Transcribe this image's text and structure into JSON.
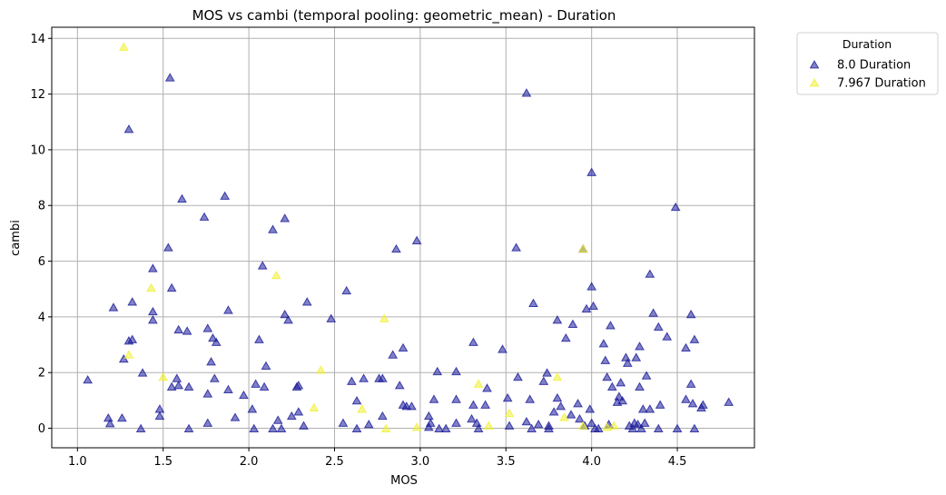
{
  "chart_data": {
    "type": "scatter",
    "title": "MOS vs cambi (temporal pooling: geometric_mean) - Duration",
    "xlabel": "MOS",
    "ylabel": "cambi",
    "xlim": [
      0.85,
      4.95
    ],
    "ylim": [
      -0.7,
      14.4
    ],
    "x_ticks": [
      "1.0",
      "1.5",
      "2.0",
      "2.5",
      "3.0",
      "3.5",
      "4.0",
      "4.5"
    ],
    "y_ticks": [
      "0",
      "2",
      "4",
      "6",
      "8",
      "10",
      "12",
      "14"
    ],
    "grid": true,
    "legend": {
      "title": "Duration",
      "placement": "outside-top-right"
    },
    "marker": "triangle",
    "series": [
      {
        "name": "8.0 Duration",
        "color": "#191a99",
        "points": [
          [
            1.06,
            1.75
          ],
          [
            1.18,
            0.38
          ],
          [
            1.19,
            0.18
          ],
          [
            1.21,
            4.35
          ],
          [
            1.26,
            0.38
          ],
          [
            1.27,
            2.5
          ],
          [
            1.3,
            10.75
          ],
          [
            1.3,
            3.15
          ],
          [
            1.32,
            3.2
          ],
          [
            1.32,
            4.55
          ],
          [
            1.37,
            0.0
          ],
          [
            1.38,
            2.0
          ],
          [
            1.44,
            5.75
          ],
          [
            1.44,
            4.2
          ],
          [
            1.44,
            3.9
          ],
          [
            1.48,
            0.7
          ],
          [
            1.48,
            0.45
          ],
          [
            1.53,
            6.5
          ],
          [
            1.54,
            12.6
          ],
          [
            1.55,
            5.05
          ],
          [
            1.55,
            1.5
          ],
          [
            1.58,
            1.8
          ],
          [
            1.59,
            3.55
          ],
          [
            1.59,
            1.55
          ],
          [
            1.61,
            8.25
          ],
          [
            1.64,
            3.5
          ],
          [
            1.65,
            1.5
          ],
          [
            1.65,
            0.0
          ],
          [
            1.74,
            7.6
          ],
          [
            1.76,
            3.6
          ],
          [
            1.76,
            1.25
          ],
          [
            1.76,
            0.2
          ],
          [
            1.78,
            2.4
          ],
          [
            1.79,
            3.25
          ],
          [
            1.8,
            1.8
          ],
          [
            1.81,
            3.1
          ],
          [
            1.86,
            8.35
          ],
          [
            1.88,
            4.25
          ],
          [
            1.88,
            1.4
          ],
          [
            1.92,
            0.4
          ],
          [
            1.97,
            1.2
          ],
          [
            2.02,
            0.7
          ],
          [
            2.03,
            0.0
          ],
          [
            2.04,
            1.6
          ],
          [
            2.06,
            3.2
          ],
          [
            2.08,
            5.85
          ],
          [
            2.09,
            1.5
          ],
          [
            2.1,
            2.25
          ],
          [
            2.14,
            7.15
          ],
          [
            2.14,
            0.0
          ],
          [
            2.17,
            0.3
          ],
          [
            2.19,
            0.0
          ],
          [
            2.21,
            7.55
          ],
          [
            2.21,
            4.1
          ],
          [
            2.23,
            3.9
          ],
          [
            2.25,
            0.45
          ],
          [
            2.28,
            1.5
          ],
          [
            2.29,
            1.55
          ],
          [
            2.29,
            0.6
          ],
          [
            2.32,
            0.1
          ],
          [
            2.34,
            4.55
          ],
          [
            2.48,
            3.95
          ],
          [
            2.55,
            0.2
          ],
          [
            2.57,
            4.95
          ],
          [
            2.6,
            1.7
          ],
          [
            2.63,
            1.0
          ],
          [
            2.63,
            0.0
          ],
          [
            2.67,
            1.8
          ],
          [
            2.7,
            0.15
          ],
          [
            2.76,
            1.8
          ],
          [
            2.78,
            1.8
          ],
          [
            2.78,
            0.45
          ],
          [
            2.84,
            2.65
          ],
          [
            2.86,
            6.45
          ],
          [
            2.88,
            1.55
          ],
          [
            2.9,
            2.9
          ],
          [
            2.9,
            0.85
          ],
          [
            2.92,
            0.8
          ],
          [
            2.95,
            0.8
          ],
          [
            2.98,
            6.75
          ],
          [
            3.05,
            0.05
          ],
          [
            3.05,
            0.45
          ],
          [
            3.06,
            0.2
          ],
          [
            3.08,
            1.05
          ],
          [
            3.1,
            2.05
          ],
          [
            3.11,
            0.0
          ],
          [
            3.15,
            0.0
          ],
          [
            3.21,
            2.05
          ],
          [
            3.21,
            1.05
          ],
          [
            3.21,
            0.2
          ],
          [
            3.3,
            0.35
          ],
          [
            3.31,
            3.1
          ],
          [
            3.31,
            0.85
          ],
          [
            3.33,
            0.2
          ],
          [
            3.34,
            0.0
          ],
          [
            3.38,
            0.85
          ],
          [
            3.39,
            1.45
          ],
          [
            3.48,
            2.85
          ],
          [
            3.51,
            1.1
          ],
          [
            3.52,
            0.1
          ],
          [
            3.56,
            6.5
          ],
          [
            3.57,
            1.85
          ],
          [
            3.62,
            12.05
          ],
          [
            3.62,
            0.25
          ],
          [
            3.64,
            1.05
          ],
          [
            3.65,
            0.0
          ],
          [
            3.66,
            4.5
          ],
          [
            3.69,
            0.15
          ],
          [
            3.72,
            1.7
          ],
          [
            3.74,
            2.0
          ],
          [
            3.75,
            0.1
          ],
          [
            3.75,
            0.0
          ],
          [
            3.78,
            0.6
          ],
          [
            3.8,
            3.9
          ],
          [
            3.8,
            1.1
          ],
          [
            3.82,
            0.8
          ],
          [
            3.85,
            3.25
          ],
          [
            3.88,
            0.5
          ],
          [
            3.89,
            3.75
          ],
          [
            3.92,
            0.9
          ],
          [
            3.93,
            0.35
          ],
          [
            3.95,
            6.45
          ],
          [
            3.96,
            0.1
          ],
          [
            3.97,
            4.3
          ],
          [
            3.99,
            0.7
          ],
          [
            4.0,
            9.2
          ],
          [
            4.0,
            5.1
          ],
          [
            4.0,
            0.2
          ],
          [
            4.01,
            4.4
          ],
          [
            4.02,
            0.0
          ],
          [
            4.04,
            0.0
          ],
          [
            4.07,
            3.05
          ],
          [
            4.08,
            2.45
          ],
          [
            4.09,
            1.85
          ],
          [
            4.1,
            0.15
          ],
          [
            4.11,
            3.7
          ],
          [
            4.12,
            1.5
          ],
          [
            4.15,
            0.95
          ],
          [
            4.16,
            1.15
          ],
          [
            4.17,
            1.65
          ],
          [
            4.18,
            1.0
          ],
          [
            4.2,
            2.55
          ],
          [
            4.21,
            2.35
          ],
          [
            4.22,
            0.1
          ],
          [
            4.24,
            0.0
          ],
          [
            4.25,
            0.2
          ],
          [
            4.26,
            2.55
          ],
          [
            4.27,
            0.15
          ],
          [
            4.28,
            2.95
          ],
          [
            4.28,
            1.5
          ],
          [
            4.29,
            0.0
          ],
          [
            4.3,
            0.7
          ],
          [
            4.31,
            0.2
          ],
          [
            4.32,
            1.9
          ],
          [
            4.34,
            5.55
          ],
          [
            4.34,
            0.7
          ],
          [
            4.36,
            4.15
          ],
          [
            4.39,
            3.65
          ],
          [
            4.39,
            0.0
          ],
          [
            4.4,
            0.85
          ],
          [
            4.44,
            3.3
          ],
          [
            4.49,
            7.95
          ],
          [
            4.5,
            0.0
          ],
          [
            4.55,
            2.9
          ],
          [
            4.55,
            1.05
          ],
          [
            4.58,
            4.1
          ],
          [
            4.58,
            1.6
          ],
          [
            4.59,
            0.9
          ],
          [
            4.6,
            3.2
          ],
          [
            4.6,
            0.0
          ],
          [
            4.64,
            0.75
          ],
          [
            4.65,
            0.85
          ],
          [
            4.8,
            0.95
          ]
        ]
      },
      {
        "name": "7.967 Duration",
        "color": "#f0f032",
        "points": [
          [
            1.27,
            13.7
          ],
          [
            1.3,
            2.65
          ],
          [
            1.43,
            5.05
          ],
          [
            1.5,
            1.85
          ],
          [
            2.16,
            5.5
          ],
          [
            2.38,
            0.75
          ],
          [
            2.42,
            2.1
          ],
          [
            2.66,
            0.7
          ],
          [
            2.79,
            3.95
          ],
          [
            2.8,
            0.0
          ],
          [
            2.98,
            0.05
          ],
          [
            3.34,
            1.6
          ],
          [
            3.4,
            0.1
          ],
          [
            3.52,
            0.55
          ],
          [
            3.8,
            1.85
          ],
          [
            3.84,
            0.4
          ],
          [
            3.95,
            6.45
          ],
          [
            3.95,
            0.1
          ],
          [
            4.09,
            0.05
          ],
          [
            4.13,
            0.1
          ]
        ]
      }
    ]
  }
}
